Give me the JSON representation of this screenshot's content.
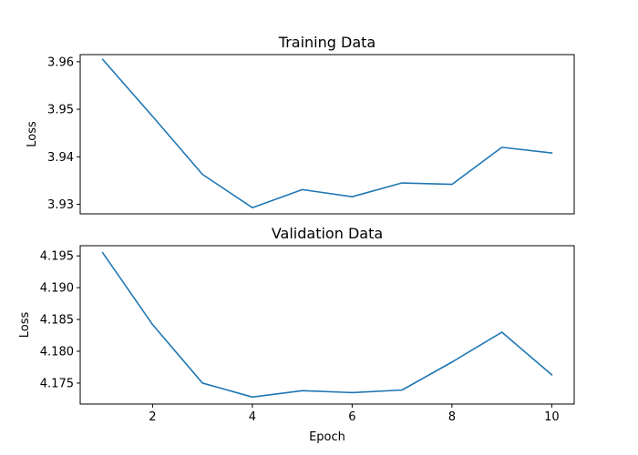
{
  "chart_data": [
    {
      "type": "line",
      "title": "Training Data",
      "xlabel": "",
      "ylabel": "Loss",
      "x": [
        1,
        2,
        3,
        4,
        5,
        6,
        7,
        8,
        9,
        10
      ],
      "series": [
        {
          "values": [
            3.9605,
            3.9485,
            3.9363,
            3.9293,
            3.9331,
            3.9316,
            3.9345,
            3.9342,
            3.942,
            3.9408
          ]
        }
      ],
      "xlim": [
        0.55,
        10.45
      ],
      "ylim": [
        3.928,
        3.9615
      ],
      "xticks": [],
      "xtick_labels": [],
      "yticks": [
        3.93,
        3.94,
        3.95,
        3.96
      ],
      "ytick_labels": [
        "3.93",
        "3.94",
        "3.95",
        "3.96"
      ],
      "grid": false,
      "color": "#1f77b4"
    },
    {
      "type": "line",
      "title": "Validation Data",
      "xlabel": "Epoch",
      "ylabel": "Loss",
      "x": [
        1,
        2,
        3,
        4,
        5,
        6,
        7,
        8,
        9,
        10
      ],
      "series": [
        {
          "values": [
            4.1955,
            4.1842,
            4.175,
            4.1728,
            4.1738,
            4.1735,
            4.1739,
            4.1783,
            4.183,
            4.1763
          ]
        }
      ],
      "xlim": [
        0.55,
        10.45
      ],
      "ylim": [
        4.1717,
        4.1966
      ],
      "xticks": [
        2,
        4,
        6,
        8,
        10
      ],
      "xtick_labels": [
        "2",
        "4",
        "6",
        "8",
        "10"
      ],
      "yticks": [
        4.175,
        4.18,
        4.185,
        4.19,
        4.195
      ],
      "ytick_labels": [
        "4.175",
        "4.180",
        "4.185",
        "4.190",
        "4.195"
      ],
      "grid": false,
      "color": "#1f77b4"
    }
  ]
}
